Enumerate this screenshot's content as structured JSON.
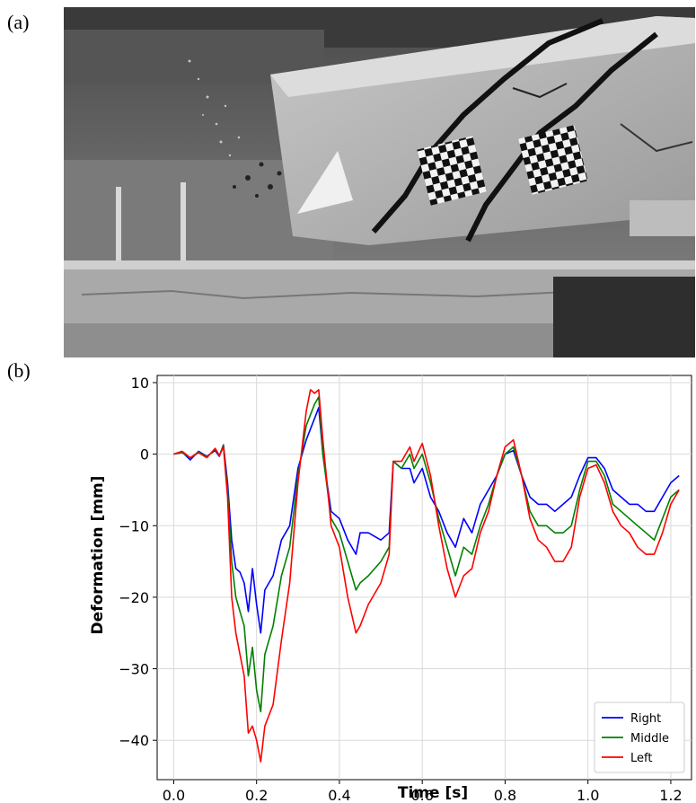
{
  "panels": {
    "a_label": "(a)",
    "b_label": "(b)"
  },
  "photo": {
    "description_icon": "beam-impact-photo-icon"
  },
  "chart_data": {
    "type": "line",
    "xlabel": "Time [s]",
    "ylabel": "Deformation [mm]",
    "xlim": [
      -0.04,
      1.25
    ],
    "ylim": [
      -45.5,
      11
    ],
    "xticks": [
      "0.0",
      "0.2",
      "0.4",
      "0.6",
      "0.8",
      "1.0",
      "1.2"
    ],
    "yticks": [
      "10",
      "0",
      "−10",
      "−20",
      "−30",
      "−40"
    ],
    "grid": true,
    "legend_position": "bottom-right",
    "series": [
      {
        "name": "Right",
        "color": "#0000ff",
        "points": [
          [
            0,
            0
          ],
          [
            0.02,
            0.3
          ],
          [
            0.04,
            -0.8
          ],
          [
            0.06,
            0.4
          ],
          [
            0.08,
            -0.3
          ],
          [
            0.1,
            0.5
          ],
          [
            0.11,
            -0.3
          ],
          [
            0.12,
            1.3
          ],
          [
            0.13,
            -4
          ],
          [
            0.14,
            -12
          ],
          [
            0.15,
            -16
          ],
          [
            0.16,
            -16.5
          ],
          [
            0.17,
            -18
          ],
          [
            0.18,
            -22
          ],
          [
            0.19,
            -16
          ],
          [
            0.2,
            -21
          ],
          [
            0.21,
            -25
          ],
          [
            0.22,
            -19
          ],
          [
            0.24,
            -17
          ],
          [
            0.26,
            -12
          ],
          [
            0.28,
            -10
          ],
          [
            0.3,
            -2
          ],
          [
            0.32,
            2
          ],
          [
            0.34,
            5
          ],
          [
            0.35,
            6.5
          ],
          [
            0.36,
            0
          ],
          [
            0.38,
            -8
          ],
          [
            0.4,
            -9
          ],
          [
            0.42,
            -12
          ],
          [
            0.44,
            -14
          ],
          [
            0.45,
            -11
          ],
          [
            0.47,
            -11
          ],
          [
            0.5,
            -12
          ],
          [
            0.52,
            -11
          ],
          [
            0.53,
            -1
          ],
          [
            0.55,
            -2
          ],
          [
            0.57,
            -2
          ],
          [
            0.58,
            -4
          ],
          [
            0.6,
            -2
          ],
          [
            0.62,
            -6
          ],
          [
            0.64,
            -8
          ],
          [
            0.66,
            -11
          ],
          [
            0.68,
            -13
          ],
          [
            0.7,
            -9
          ],
          [
            0.72,
            -11
          ],
          [
            0.74,
            -7
          ],
          [
            0.76,
            -5
          ],
          [
            0.78,
            -3
          ],
          [
            0.8,
            0
          ],
          [
            0.82,
            0.5
          ],
          [
            0.84,
            -3
          ],
          [
            0.86,
            -6
          ],
          [
            0.88,
            -7
          ],
          [
            0.9,
            -7
          ],
          [
            0.92,
            -8
          ],
          [
            0.94,
            -7
          ],
          [
            0.96,
            -6
          ],
          [
            0.98,
            -3
          ],
          [
            1.0,
            -0.5
          ],
          [
            1.02,
            -0.5
          ],
          [
            1.04,
            -2
          ],
          [
            1.06,
            -5
          ],
          [
            1.08,
            -6
          ],
          [
            1.1,
            -7
          ],
          [
            1.12,
            -7
          ],
          [
            1.14,
            -8
          ],
          [
            1.16,
            -8
          ],
          [
            1.18,
            -6
          ],
          [
            1.2,
            -4
          ],
          [
            1.22,
            -3
          ]
        ]
      },
      {
        "name": "Middle",
        "color": "#008000",
        "points": [
          [
            0,
            0
          ],
          [
            0.02,
            0.2
          ],
          [
            0.04,
            -0.5
          ],
          [
            0.06,
            0.3
          ],
          [
            0.08,
            -0.4
          ],
          [
            0.1,
            0.7
          ],
          [
            0.11,
            -0.2
          ],
          [
            0.12,
            1.2
          ],
          [
            0.13,
            -5
          ],
          [
            0.14,
            -15
          ],
          [
            0.15,
            -20
          ],
          [
            0.16,
            -22
          ],
          [
            0.17,
            -24
          ],
          [
            0.18,
            -31
          ],
          [
            0.19,
            -27
          ],
          [
            0.2,
            -33
          ],
          [
            0.21,
            -36
          ],
          [
            0.22,
            -28
          ],
          [
            0.24,
            -24
          ],
          [
            0.26,
            -17
          ],
          [
            0.28,
            -13
          ],
          [
            0.3,
            -3
          ],
          [
            0.32,
            4
          ],
          [
            0.34,
            7
          ],
          [
            0.35,
            8
          ],
          [
            0.36,
            0
          ],
          [
            0.38,
            -9
          ],
          [
            0.4,
            -11
          ],
          [
            0.42,
            -15
          ],
          [
            0.44,
            -19
          ],
          [
            0.45,
            -18
          ],
          [
            0.47,
            -17
          ],
          [
            0.5,
            -15
          ],
          [
            0.52,
            -13
          ],
          [
            0.53,
            -1
          ],
          [
            0.55,
            -2
          ],
          [
            0.57,
            0
          ],
          [
            0.58,
            -2
          ],
          [
            0.6,
            0
          ],
          [
            0.62,
            -4
          ],
          [
            0.64,
            -9
          ],
          [
            0.66,
            -13
          ],
          [
            0.68,
            -17
          ],
          [
            0.7,
            -13
          ],
          [
            0.72,
            -14
          ],
          [
            0.74,
            -10
          ],
          [
            0.76,
            -7
          ],
          [
            0.78,
            -3
          ],
          [
            0.8,
            0
          ],
          [
            0.82,
            1
          ],
          [
            0.84,
            -3
          ],
          [
            0.86,
            -8
          ],
          [
            0.88,
            -10
          ],
          [
            0.9,
            -10
          ],
          [
            0.92,
            -11
          ],
          [
            0.94,
            -11
          ],
          [
            0.96,
            -10
          ],
          [
            0.98,
            -5
          ],
          [
            1.0,
            -1
          ],
          [
            1.02,
            -1
          ],
          [
            1.04,
            -3
          ],
          [
            1.06,
            -7
          ],
          [
            1.08,
            -8
          ],
          [
            1.1,
            -9
          ],
          [
            1.12,
            -10
          ],
          [
            1.14,
            -11
          ],
          [
            1.16,
            -12
          ],
          [
            1.18,
            -9
          ],
          [
            1.2,
            -6
          ],
          [
            1.22,
            -5
          ]
        ]
      },
      {
        "name": "Left",
        "color": "#ff0000",
        "points": [
          [
            0,
            0
          ],
          [
            0.02,
            0.4
          ],
          [
            0.04,
            -0.5
          ],
          [
            0.06,
            0.2
          ],
          [
            0.08,
            -0.5
          ],
          [
            0.1,
            0.8
          ],
          [
            0.11,
            -0.2
          ],
          [
            0.12,
            1.0
          ],
          [
            0.13,
            -6
          ],
          [
            0.14,
            -20
          ],
          [
            0.15,
            -25
          ],
          [
            0.16,
            -28
          ],
          [
            0.17,
            -31
          ],
          [
            0.18,
            -39
          ],
          [
            0.19,
            -38
          ],
          [
            0.2,
            -40
          ],
          [
            0.21,
            -43
          ],
          [
            0.22,
            -38
          ],
          [
            0.24,
            -35
          ],
          [
            0.26,
            -26
          ],
          [
            0.28,
            -18
          ],
          [
            0.3,
            -4
          ],
          [
            0.32,
            6
          ],
          [
            0.33,
            9
          ],
          [
            0.34,
            8.5
          ],
          [
            0.35,
            9
          ],
          [
            0.36,
            2
          ],
          [
            0.38,
            -10
          ],
          [
            0.4,
            -13
          ],
          [
            0.42,
            -20
          ],
          [
            0.44,
            -25
          ],
          [
            0.45,
            -24
          ],
          [
            0.47,
            -21
          ],
          [
            0.5,
            -18
          ],
          [
            0.52,
            -14
          ],
          [
            0.53,
            -1
          ],
          [
            0.55,
            -1
          ],
          [
            0.57,
            1
          ],
          [
            0.58,
            -1
          ],
          [
            0.6,
            1.5
          ],
          [
            0.62,
            -3
          ],
          [
            0.64,
            -10
          ],
          [
            0.66,
            -16
          ],
          [
            0.68,
            -20
          ],
          [
            0.7,
            -17
          ],
          [
            0.72,
            -16
          ],
          [
            0.74,
            -11
          ],
          [
            0.76,
            -8
          ],
          [
            0.78,
            -3
          ],
          [
            0.8,
            1
          ],
          [
            0.82,
            2
          ],
          [
            0.84,
            -3
          ],
          [
            0.86,
            -9
          ],
          [
            0.88,
            -12
          ],
          [
            0.9,
            -13
          ],
          [
            0.92,
            -15
          ],
          [
            0.94,
            -15
          ],
          [
            0.96,
            -13
          ],
          [
            0.98,
            -6
          ],
          [
            1.0,
            -2
          ],
          [
            1.02,
            -1.5
          ],
          [
            1.04,
            -4
          ],
          [
            1.06,
            -8
          ],
          [
            1.08,
            -10
          ],
          [
            1.1,
            -11
          ],
          [
            1.12,
            -13
          ],
          [
            1.14,
            -14
          ],
          [
            1.16,
            -14
          ],
          [
            1.18,
            -11
          ],
          [
            1.2,
            -7
          ],
          [
            1.22,
            -5
          ]
        ]
      }
    ]
  }
}
